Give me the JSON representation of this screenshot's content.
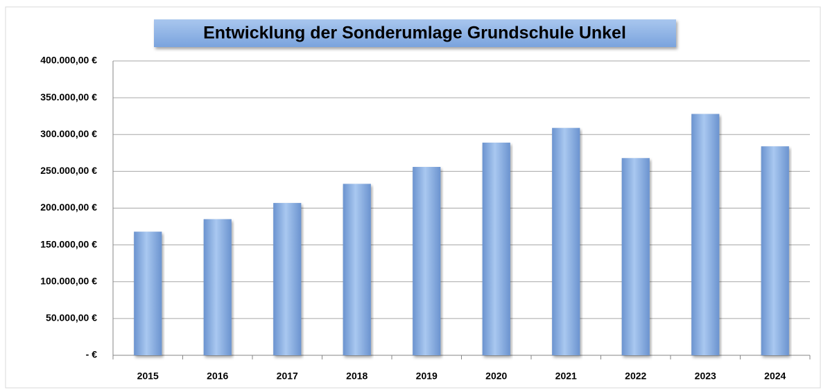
{
  "chart_data": {
    "type": "bar",
    "title": "Entwicklung der Sonderumlage Grundschule Unkel",
    "categories": [
      "2015",
      "2016",
      "2017",
      "2018",
      "2019",
      "2020",
      "2021",
      "2022",
      "2023",
      "2024"
    ],
    "values": [
      168000,
      185000,
      207000,
      233000,
      256000,
      289000,
      309000,
      268000,
      328000,
      284000
    ],
    "color": "#8db3e8",
    "ylim": [
      0,
      400000
    ],
    "yticks": [
      {
        "value": 0,
        "label": "-  €"
      },
      {
        "value": 50000,
        "label": "50.000,00 €"
      },
      {
        "value": 100000,
        "label": "100.000,00 €"
      },
      {
        "value": 150000,
        "label": "150.000,00 €"
      },
      {
        "value": 200000,
        "label": "200.000,00 €"
      },
      {
        "value": 250000,
        "label": "250.000,00 €"
      },
      {
        "value": 300000,
        "label": "300.000,00 €"
      },
      {
        "value": 350000,
        "label": "350.000,00 €"
      },
      {
        "value": 400000,
        "label": "400.000,00 €"
      }
    ],
    "grid": true
  }
}
